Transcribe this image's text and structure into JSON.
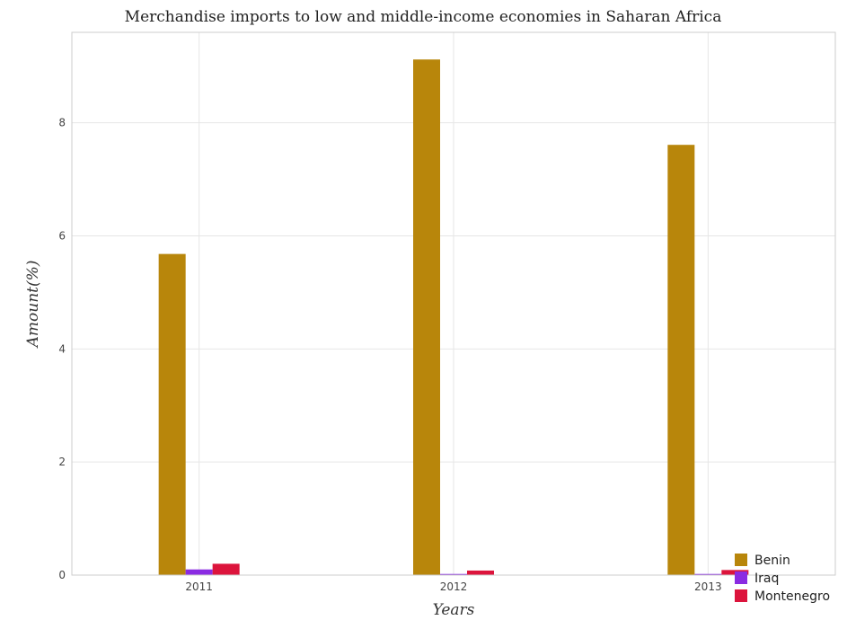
{
  "chart_data": {
    "type": "bar",
    "title": "Merchandise imports to low and middle-income economies in Saharan Africa",
    "xlabel": "Years",
    "ylabel": "Amount(%)",
    "categories": [
      "2011",
      "2012",
      "2013"
    ],
    "ylim": [
      0,
      9.6
    ],
    "yticks": [
      0,
      2,
      4,
      6,
      8
    ],
    "ytick_labels": [
      "0",
      "2",
      "4",
      "6",
      "8"
    ],
    "grid": true,
    "legend_position": "bottom-right",
    "series": [
      {
        "name": "Benin",
        "color": "#b8860b",
        "values": [
          5.68,
          9.12,
          7.61
        ]
      },
      {
        "name": "Iraq",
        "color": "#8a2be2",
        "values": [
          0.1,
          0.02,
          0.02
        ]
      },
      {
        "name": "Montenegro",
        "color": "#dc143c",
        "values": [
          0.2,
          0.08,
          0.09
        ]
      }
    ]
  }
}
